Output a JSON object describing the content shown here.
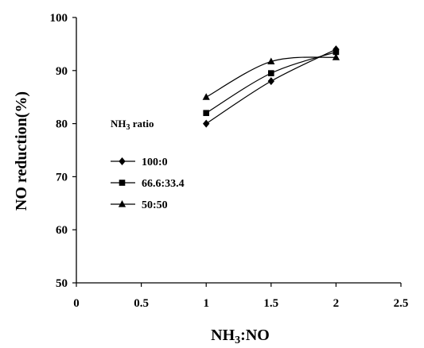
{
  "chart_data": {
    "type": "line",
    "xlabel": "NH3:NO",
    "ylabel": "NO reduction(%)",
    "xlim": [
      0,
      2.5
    ],
    "ylim": [
      50,
      100
    ],
    "x_ticks": [
      "0",
      "0.5",
      "1",
      "1.5",
      "2",
      "2.5"
    ],
    "y_ticks": [
      "50",
      "60",
      "70",
      "80",
      "90",
      "100"
    ],
    "grid": false,
    "legend_title": "NH3 ratio",
    "legend_placement": "left-center",
    "series": [
      {
        "name": "100:0",
        "marker": "diamond",
        "x": [
          1,
          1.5,
          2
        ],
        "y": [
          80,
          88,
          94
        ]
      },
      {
        "name": "66.6:33.4",
        "marker": "square",
        "x": [
          1,
          1.5,
          2
        ],
        "y": [
          82,
          89.5,
          93.5
        ]
      },
      {
        "name": "50:50",
        "marker": "triangle",
        "x": [
          1,
          1.5,
          2
        ],
        "y": [
          85,
          91.7,
          92.5
        ]
      }
    ]
  }
}
